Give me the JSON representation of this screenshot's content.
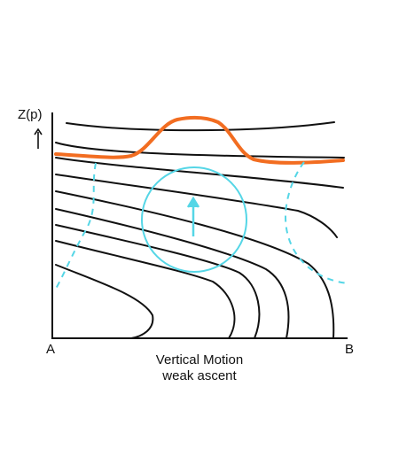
{
  "labels": {
    "vertical_axis": "Z(p)",
    "left_point": "A",
    "right_point": "B",
    "caption_line1": "Vertical Motion",
    "caption_line2": "weak ascent"
  },
  "colors": {
    "isolines": "#111111",
    "highlight_curve": "#f26d21",
    "ascent_region": "#55d6e6"
  },
  "icons": {
    "axis_arrow": "up-arrow-icon",
    "ascent_arrow": "up-arrow-icon"
  }
}
